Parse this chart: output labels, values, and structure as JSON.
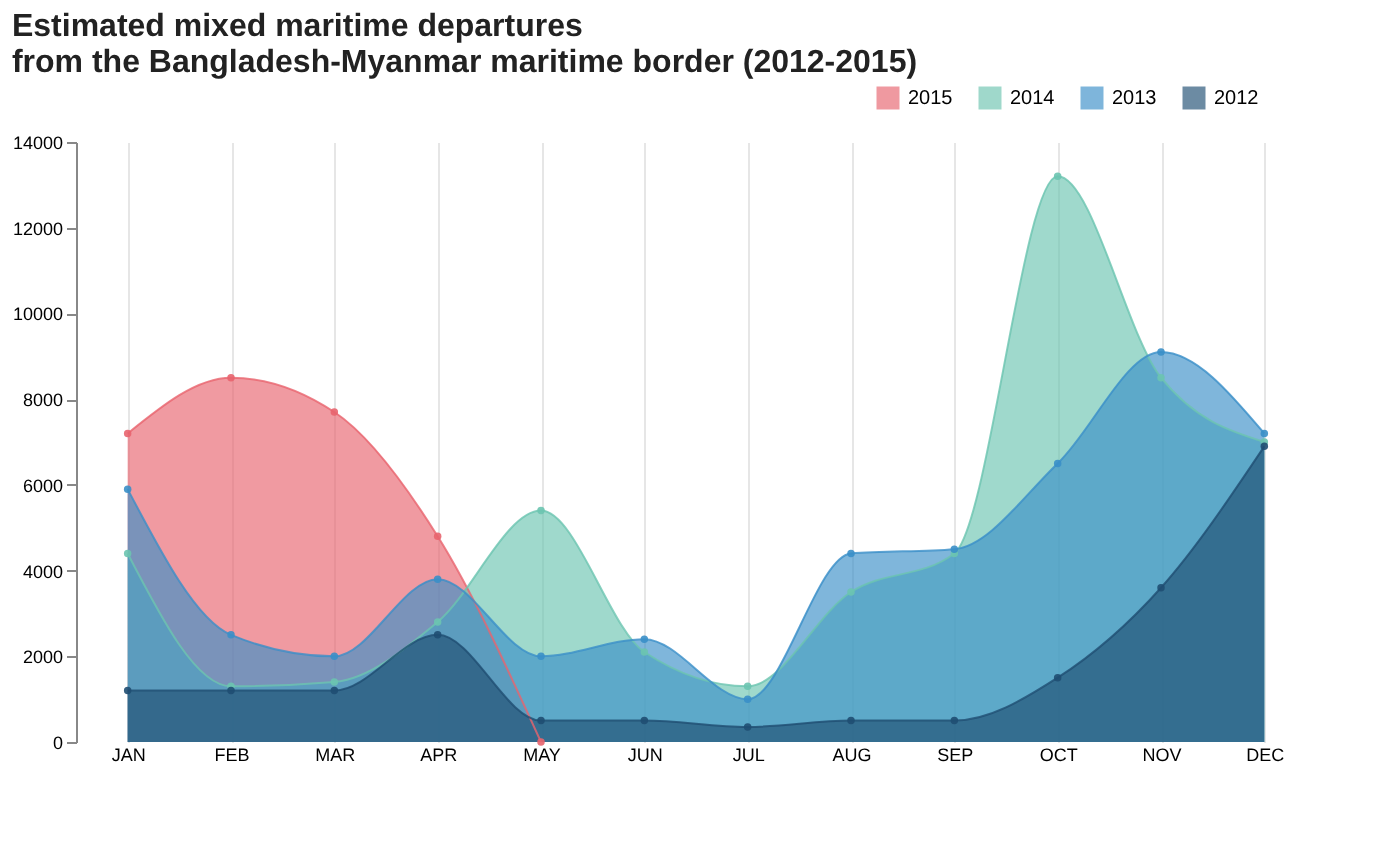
{
  "chart_data": {
    "type": "area",
    "title": [
      "Estimated mixed maritime departures",
      "from the Bangladesh-Myanmar maritime border (2012-2015)"
    ],
    "categories": [
      "JAN",
      "FEB",
      "MAR",
      "APR",
      "MAY",
      "JUN",
      "JUL",
      "AUG",
      "SEP",
      "OCT",
      "NOV",
      "DEC"
    ],
    "series": [
      {
        "name": "2015",
        "color": "#e8646e",
        "values": [
          7200,
          8500,
          7700,
          4800,
          0,
          null,
          null,
          null,
          null,
          null,
          null,
          null
        ]
      },
      {
        "name": "2014",
        "color": "#6cc4b0",
        "values": [
          4400,
          1300,
          1400,
          2800,
          5400,
          2100,
          1300,
          3500,
          4400,
          13200,
          8500,
          7000
        ]
      },
      {
        "name": "2013",
        "color": "#3a8fc8",
        "values": [
          5900,
          2500,
          2000,
          3800,
          2000,
          2400,
          1000,
          4400,
          4500,
          6500,
          9100,
          7200
        ]
      },
      {
        "name": "2012",
        "color": "#1f4e72",
        "values": [
          1200,
          1200,
          1200,
          2500,
          500,
          500,
          350,
          500,
          500,
          1500,
          3600,
          6900
        ]
      }
    ],
    "ylim": [
      0,
      14000
    ],
    "yticks": [
      0,
      2000,
      4000,
      6000,
      8000,
      10000,
      12000,
      14000
    ],
    "grid": "x",
    "legend": "top right",
    "marker": "circle"
  }
}
